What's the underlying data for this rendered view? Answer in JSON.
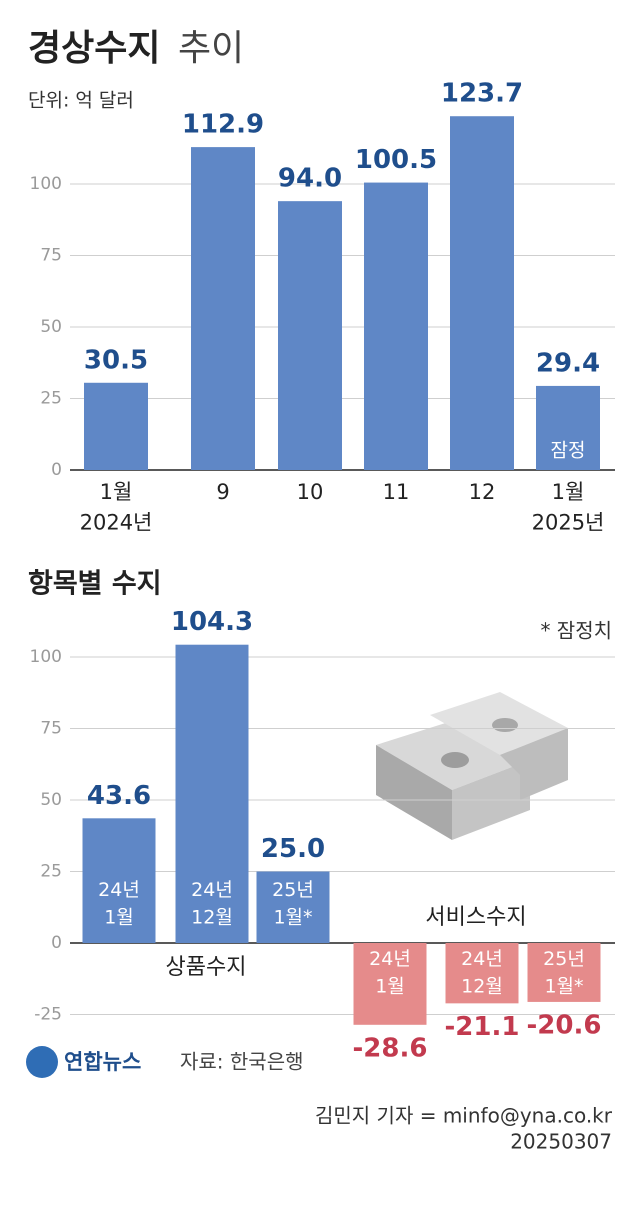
{
  "chart_data": [
    {
      "type": "bar",
      "title": "경상수지",
      "title_suffix": "추이",
      "subtitle": "단위: 억 달러",
      "categories": [
        "1월\n2024년",
        "9",
        "10",
        "11",
        "12",
        "1월\n2025년"
      ],
      "series": [
        {
          "name": null,
          "color": "#5f87c6",
          "values": [
            30.5,
            112.9,
            94.0,
            100.5,
            123.7,
            29.4
          ],
          "value_labels": [
            "30.5",
            "112.9",
            "94.0",
            "100.5",
            "123.7",
            "29.4"
          ]
        }
      ],
      "annotations": [
        {
          "category_index": 5,
          "text": "잠정"
        }
      ],
      "ylim": [
        0,
        130
      ],
      "yticks": [
        0,
        25,
        50,
        75,
        100
      ],
      "grid": true
    },
    {
      "type": "bar",
      "title": "항목별 수지",
      "note": "* 잠정치",
      "categories": [
        "24년\n1월",
        "24년\n12월",
        "25년\n1월*",
        "24년\n1월",
        "24년\n12월",
        "25년\n1월*"
      ],
      "series": [
        {
          "name": "상품수지",
          "color": "#5f87c6",
          "label_color": "#1f4e8c",
          "values": [
            43.6,
            104.3,
            25.0,
            null,
            null,
            null
          ],
          "value_labels": [
            "43.6",
            "104.3",
            "25.0",
            null,
            null,
            null
          ]
        },
        {
          "name": "서비스수지",
          "color": "#e58b8b",
          "label_color": "#c23a4e",
          "values": [
            null,
            null,
            null,
            -28.6,
            -21.1,
            -20.6
          ],
          "value_labels": [
            null,
            null,
            null,
            "-28.6",
            "-21.1",
            "-20.6"
          ]
        }
      ],
      "ylim": [
        -30,
        110
      ],
      "yticks": [
        -25,
        0,
        25,
        50,
        75,
        100
      ],
      "grid": true
    }
  ],
  "footer": {
    "logo": "연합뉴스",
    "source": "자료: 한국은행",
    "credit": "김민지 기자 = minfo@yna.co.kr",
    "date": "20250307"
  }
}
